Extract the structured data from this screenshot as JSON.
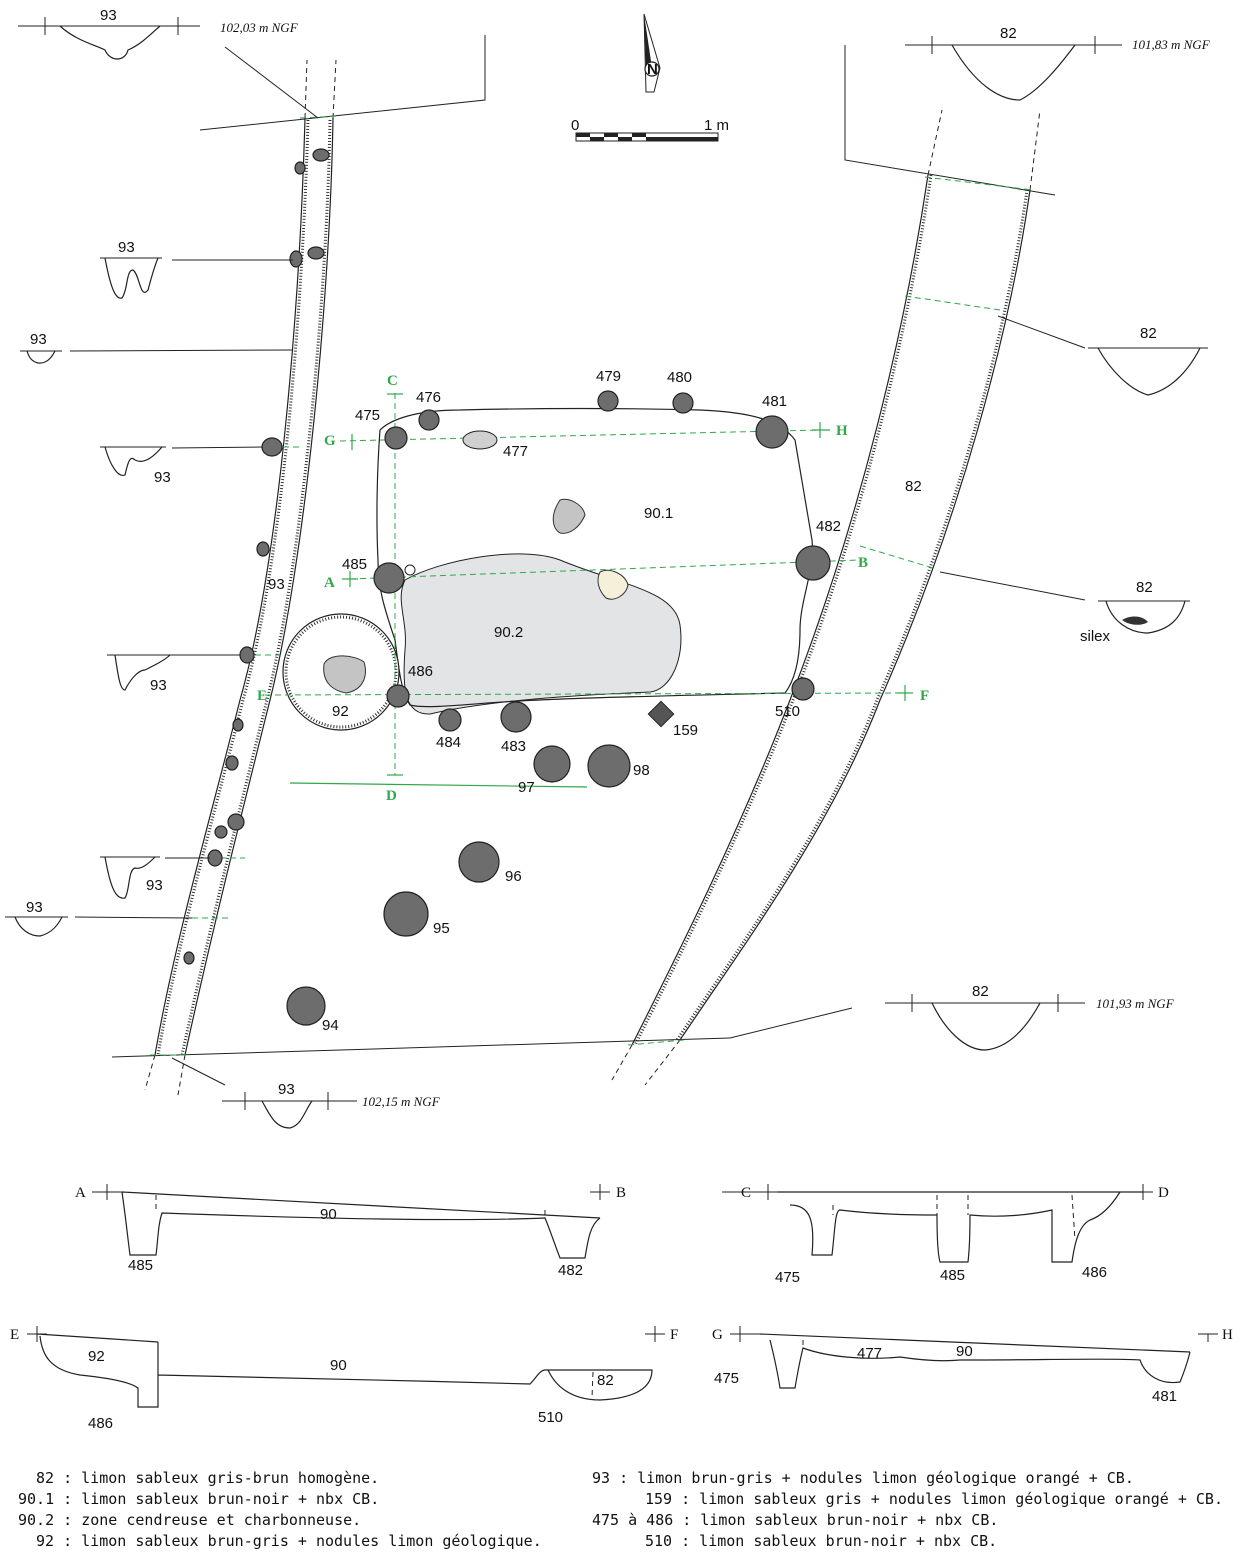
{
  "colors": {
    "green": "#2fa84a",
    "post_fill": "#6d6d6d",
    "ash_zone": "#e3e4e5",
    "stone": "#c4c4c4",
    "pale_stone": "#f4f0da"
  },
  "north": {
    "letter": "N"
  },
  "scale": {
    "start": "0",
    "end": "1 m"
  },
  "features": {
    "f82": "82",
    "f901": "90.1",
    "f902": "90.2",
    "f92": "92",
    "f93": "93",
    "p475": "475",
    "p476": "476",
    "p477": "477",
    "p479": "479",
    "p480": "480",
    "p481": "481",
    "p482": "482",
    "p485": "485",
    "p486": "486",
    "p484": "484",
    "p483": "483",
    "p159": "159",
    "p510": "510",
    "p97": "97",
    "p98": "98",
    "p96": "96",
    "p95": "95",
    "p94": "94"
  },
  "section_points": {
    "A": "A",
    "B": "B",
    "C": "C",
    "D": "D",
    "E": "E",
    "F": "F",
    "G": "G",
    "H": "H"
  },
  "ditch_sections": {
    "t93a": "93",
    "ngf1": "102,03 m NGF",
    "t82a": "82",
    "ngf2": "101,83 m NGF",
    "t93b": "93",
    "t93c": "93",
    "t93d": "93",
    "t93e": "93",
    "t93f": "93",
    "t93g": "93",
    "t82b": "82",
    "t82c": "82",
    "silex": "silex",
    "t82d": "82",
    "ngf3": "101,93 m NGF",
    "t93h": "93",
    "ngf4": "102,15 m NGF"
  },
  "profiles": {
    "ab": {
      "a": "A",
      "b": "B",
      "f90": "90",
      "f485": "485",
      "f482": "482"
    },
    "cd": {
      "c": "C",
      "d": "D",
      "f475": "475",
      "f485": "485",
      "f486": "486"
    },
    "ef": {
      "e": "E",
      "f": "F",
      "f92": "92",
      "f90": "90",
      "f486": "486",
      "f510": "510",
      "f82": "82"
    },
    "gh": {
      "g": "G",
      "h": "H",
      "f475": "475",
      "f477": "477",
      "f90": "90",
      "f481": "481"
    }
  },
  "legend": {
    "l1": "82 : limon sableux gris-brun homogène.",
    "l2": "90.1 : limon sableux brun-noir + nbx CB.",
    "l3": "90.2 : zone cendreuse et charbonneuse.",
    "l4": "92 : limon sableux brun-gris + nodules limon géologique.",
    "r1": "93 : limon brun-gris + nodules limon géologique orangé + CB.",
    "r2": "159 : limon sableux gris + nodules limon géologique orangé + CB.",
    "r3": "475 à 486 : limon sableux brun-noir + nbx CB.",
    "r4": "510 : limon sableux brun-noir + nbx CB."
  }
}
